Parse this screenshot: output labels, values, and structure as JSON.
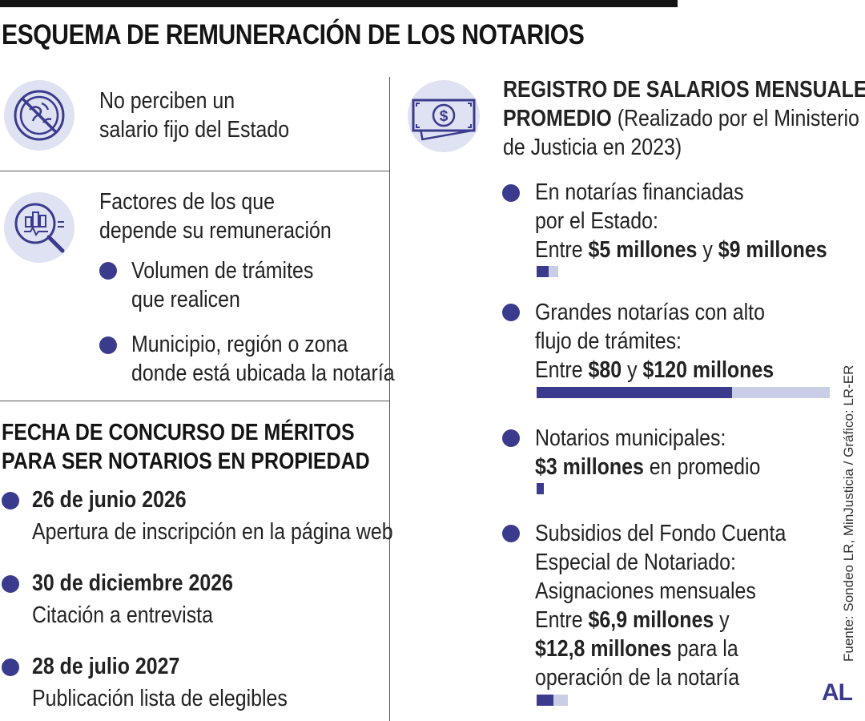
{
  "title": "ESQUEMA DE REMUNERACIÓN DE LOS NOTARIOS",
  "left": {
    "no_salary": {
      "icon": "no-money-globe-icon",
      "lines": [
        "No perciben un",
        "salario fijo del Estado"
      ]
    },
    "factors": {
      "icon": "analysis-magnifier-icon",
      "lines": [
        "Factores de los que",
        "depende su remuneración"
      ],
      "items": [
        {
          "lines": [
            "Volumen de trámites",
            "que realicen"
          ]
        },
        {
          "lines": [
            "Municipio, región o zona",
            "donde está ubicada la notaría"
          ]
        }
      ]
    },
    "contest": {
      "title_lines": [
        "FECHA DE CONCURSO DE MÉRITOS",
        "PARA SER NOTARIOS EN PROPIEDAD"
      ],
      "dates": [
        {
          "date": "26 de junio 2026",
          "desc": "Apertura de inscripción en la página web"
        },
        {
          "date": "30 de diciembre 2026",
          "desc": "Citación a entrevista"
        },
        {
          "date": "28 de julio 2027",
          "desc": "Publicación lista de elegibles"
        }
      ]
    }
  },
  "right": {
    "icon": "money-bill-icon",
    "title_line1": "REGISTRO DE SALARIOS MENSUALES",
    "title_line2_bold": "PROMEDIO",
    "title_line2_rest": " (Realizado por el Ministerio",
    "title_line3": "de Justicia en 2023)",
    "items": [
      {
        "l1": "En notarías financiadas",
        "l2": "por el Estado:",
        "range_prefix": "Entre ",
        "range_a": "$5 millones",
        "range_mid": " y ",
        "range_b": "$9 millones",
        "bar_low": 5,
        "bar_high": 9
      },
      {
        "l1": "Grandes notarías con alto",
        "l2": "flujo de trámites:",
        "range_prefix": "Entre ",
        "range_a": "$80",
        "range_mid": " y ",
        "range_b": "$120 millones",
        "bar_low": 80,
        "bar_high": 120
      },
      {
        "l1": "Notarios municipales:",
        "value_bold": "$3 millones",
        "value_rest": " en promedio",
        "bar_low": 3,
        "bar_high": 3
      },
      {
        "l1": "Subsidios del Fondo Cuenta",
        "l2": "Especial de Notariado:",
        "l3": "Asignaciones mensuales",
        "l4_prefix": "Entre ",
        "l4_bold": "$6,9 millones",
        "l4_rest": " y",
        "l5_bold": "$12,8 millones",
        "l5_rest": " para la",
        "l6": "operación de la notaría",
        "bar_low": 6.9,
        "bar_high": 12.8
      }
    ],
    "bar_scale_max": 120
  },
  "source": "Fuente: Sondeo LR, MinJusticia / Gráfico: LR-ER",
  "logo": "AL",
  "colors": {
    "accent": "#3a3b8c",
    "accent_light": "#c9cde6",
    "icon_bg": "#dfe2f2"
  }
}
